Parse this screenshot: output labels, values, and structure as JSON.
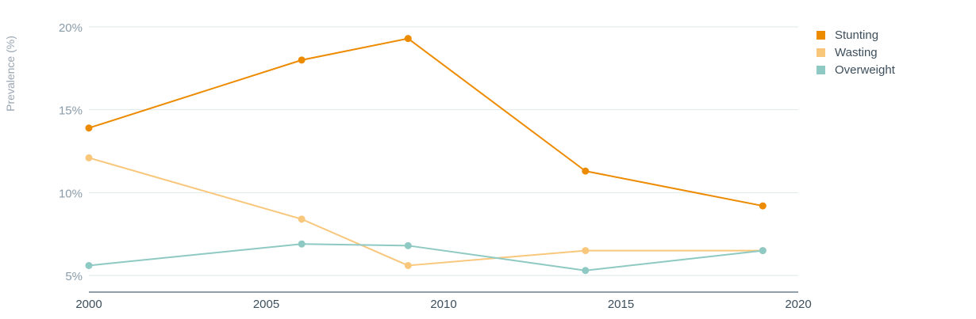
{
  "chart_data": {
    "type": "line",
    "ylabel": "Prevalence (%)",
    "xlabel": "",
    "xlim": [
      2000,
      2020
    ],
    "ylim": [
      4,
      20
    ],
    "x_ticks": [
      2000,
      2005,
      2010,
      2015,
      2020
    ],
    "y_ticks": [
      {
        "value": 5,
        "label": "5%"
      },
      {
        "value": 10,
        "label": "10%"
      },
      {
        "value": 15,
        "label": "15%"
      },
      {
        "value": 20,
        "label": "20%"
      }
    ],
    "grid": "horizontal",
    "legend_position": "top-right",
    "series": [
      {
        "name": "Stunting",
        "color": "#ed8b00",
        "x": [
          2000,
          2006,
          2009,
          2014,
          2019
        ],
        "values": [
          13.9,
          18.0,
          19.3,
          11.3,
          9.2
        ]
      },
      {
        "name": "Wasting",
        "color": "#f8c77b",
        "x": [
          2000,
          2006,
          2009,
          2014,
          2019
        ],
        "values": [
          12.1,
          8.4,
          5.6,
          6.5,
          6.5
        ]
      },
      {
        "name": "Overweight",
        "color": "#8ec9c4",
        "x": [
          2000,
          2006,
          2009,
          2014,
          2019
        ],
        "values": [
          5.6,
          6.9,
          6.8,
          5.3,
          6.5
        ]
      }
    ]
  }
}
